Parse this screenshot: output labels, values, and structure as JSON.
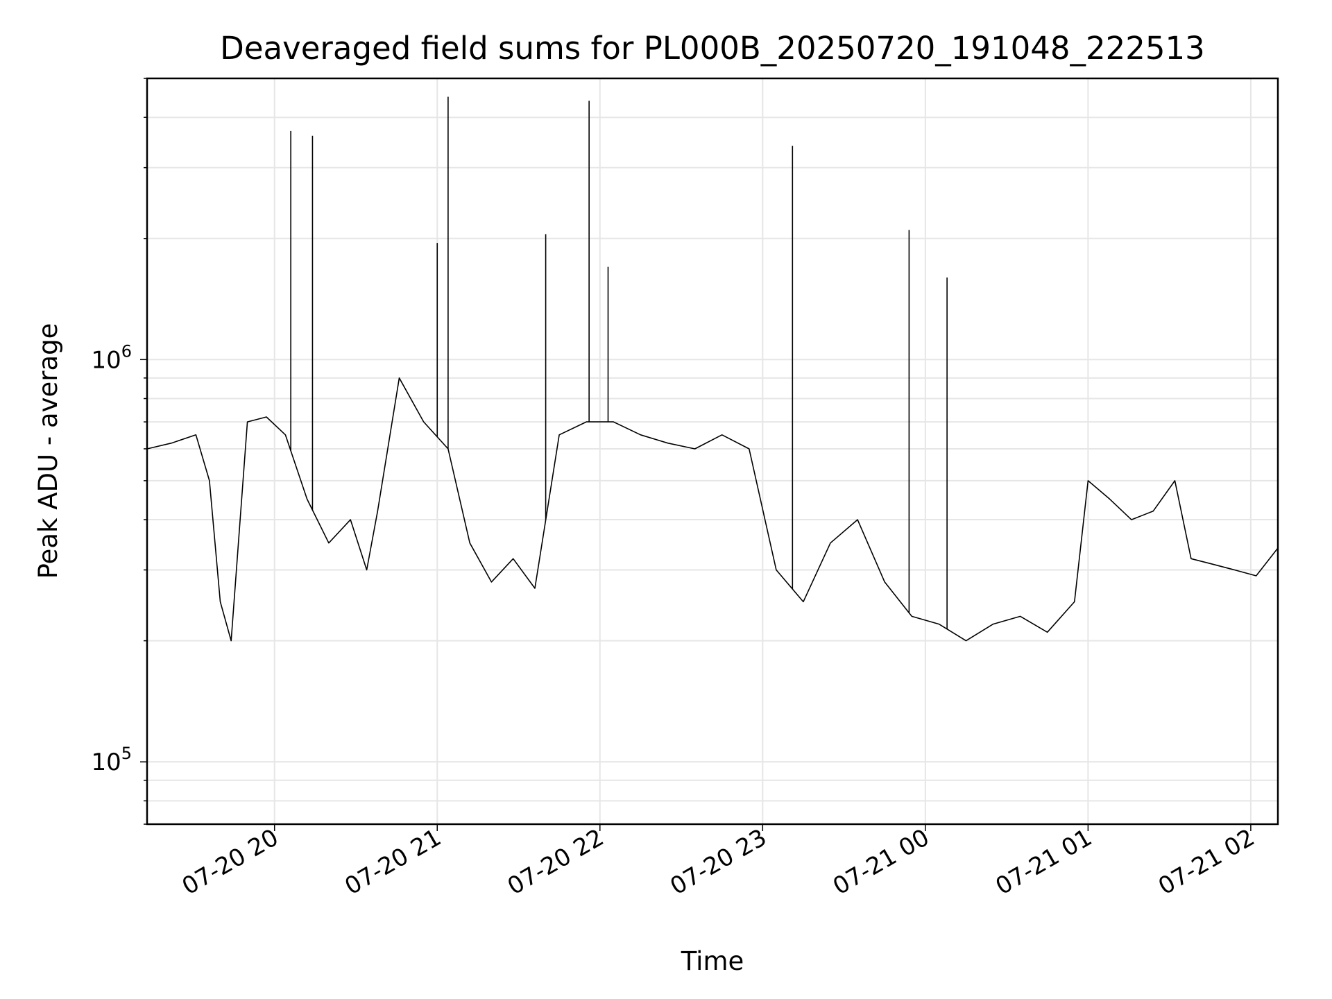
{
  "chart_data": {
    "type": "line",
    "title": "Deaveraged field sums for PL000B_20250720_191048_222513",
    "xlabel": "Time",
    "ylabel": "Peak ADU - average",
    "y_scale": "log",
    "ylim": [
      70000,
      5000000
    ],
    "xlim": [
      "2025-07-20T19:13",
      "2025-07-21T02:10"
    ],
    "x_ticks": [
      {
        "value": "2025-07-20T20:00",
        "label": "07-20 20"
      },
      {
        "value": "2025-07-20T21:00",
        "label": "07-20 21"
      },
      {
        "value": "2025-07-20T22:00",
        "label": "07-20 22"
      },
      {
        "value": "2025-07-20T23:00",
        "label": "07-20 23"
      },
      {
        "value": "2025-07-21T00:00",
        "label": "07-21 00"
      },
      {
        "value": "2025-07-21T01:00",
        "label": "07-21 01"
      },
      {
        "value": "2025-07-21T02:00",
        "label": "07-21 02"
      }
    ],
    "y_ticks": [
      {
        "value": 100000,
        "base": "10",
        "exp": "5"
      },
      {
        "value": 1000000,
        "base": "10",
        "exp": "6"
      }
    ],
    "grid": true,
    "series_color": "#000000",
    "series": [
      {
        "x": [
          "2025-07-20T19:13",
          "2025-07-20T19:22",
          "2025-07-20T19:31",
          "2025-07-20T19:36",
          "2025-07-20T19:40",
          "2025-07-20T19:44",
          "2025-07-20T19:50",
          "2025-07-20T19:57",
          "2025-07-20T20:04",
          "2025-07-20T20:12",
          "2025-07-20T20:20",
          "2025-07-20T20:28",
          "2025-07-20T20:34",
          "2025-07-20T20:38",
          "2025-07-20T20:46",
          "2025-07-20T20:55",
          "2025-07-20T21:04",
          "2025-07-20T21:12",
          "2025-07-20T21:20",
          "2025-07-20T21:28",
          "2025-07-20T21:36",
          "2025-07-20T21:45",
          "2025-07-20T21:55",
          "2025-07-20T22:05",
          "2025-07-20T22:15",
          "2025-07-20T22:25",
          "2025-07-20T22:35",
          "2025-07-20T22:45",
          "2025-07-20T22:55",
          "2025-07-20T23:05",
          "2025-07-20T23:15",
          "2025-07-20T23:25",
          "2025-07-20T23:35",
          "2025-07-20T23:45",
          "2025-07-20T23:55",
          "2025-07-21T00:05",
          "2025-07-21T00:15",
          "2025-07-21T00:25",
          "2025-07-21T00:35",
          "2025-07-21T00:45",
          "2025-07-21T00:55",
          "2025-07-21T01:00",
          "2025-07-21T01:08",
          "2025-07-21T01:16",
          "2025-07-21T01:24",
          "2025-07-21T01:32",
          "2025-07-21T01:38",
          "2025-07-21T01:46",
          "2025-07-21T01:54",
          "2025-07-21T02:02",
          "2025-07-21T02:10"
        ],
        "y": [
          600000,
          620000,
          650000,
          500000,
          250000,
          200000,
          700000,
          720000,
          650000,
          450000,
          350000,
          400000,
          300000,
          420000,
          900000,
          700000,
          600000,
          350000,
          280000,
          320000,
          270000,
          650000,
          700000,
          700000,
          650000,
          620000,
          600000,
          650000,
          600000,
          300000,
          250000,
          350000,
          400000,
          280000,
          230000,
          220000,
          200000,
          220000,
          230000,
          210000,
          250000,
          500000,
          450000,
          400000,
          420000,
          500000,
          320000,
          310000,
          300000,
          290000,
          340000
        ]
      }
    ],
    "spikes": [
      {
        "x": "2025-07-20T20:06",
        "y": 3700000
      },
      {
        "x": "2025-07-20T20:14",
        "y": 3600000
      },
      {
        "x": "2025-07-20T21:00",
        "y": 1950000
      },
      {
        "x": "2025-07-20T21:04",
        "y": 4500000
      },
      {
        "x": "2025-07-20T21:40",
        "y": 2050000
      },
      {
        "x": "2025-07-20T21:56",
        "y": 4400000
      },
      {
        "x": "2025-07-20T22:03",
        "y": 1700000
      },
      {
        "x": "2025-07-20T23:11",
        "y": 3400000
      },
      {
        "x": "2025-07-20T23:54",
        "y": 2100000
      },
      {
        "x": "2025-07-21T00:08",
        "y": 1600000
      }
    ]
  }
}
